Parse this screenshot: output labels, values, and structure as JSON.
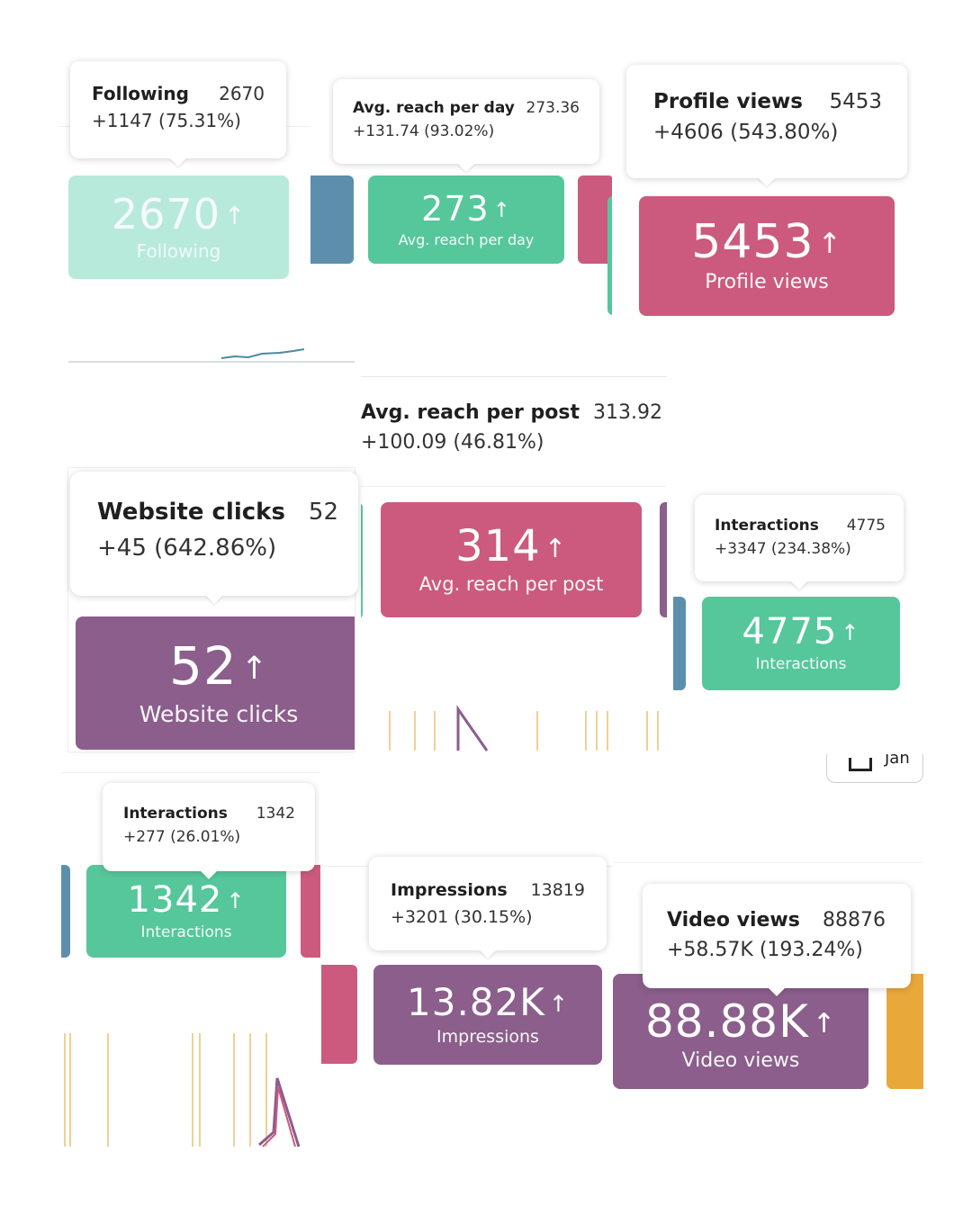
{
  "colors": {
    "teal": "#55c79b",
    "teal_light": "#b8eadb",
    "pink": "#cc5a7e",
    "purple": "#8b5e8c",
    "blue": "#5d8fad",
    "orange": "#e9a83a"
  },
  "metrics": [
    {
      "id": "following",
      "label": "Following",
      "value": "2670",
      "change": "+1147 (75.31%)",
      "card_value": "2670",
      "card_label": "Following",
      "arrow": "↑"
    },
    {
      "id": "avg_reach_day",
      "label": "Avg. reach per day",
      "value": "273.36",
      "change": "+131.74 (93.02%)",
      "card_value": "273",
      "card_label": "Avg. reach per day",
      "arrow": "↑"
    },
    {
      "id": "profile_views",
      "label": "Profile views",
      "value": "5453",
      "change": "+4606 (543.80%)",
      "card_value": "5453",
      "card_label": "Profile views",
      "arrow": "↑"
    },
    {
      "id": "avg_reach_post",
      "label": "Avg. reach per post",
      "value": "313.92",
      "change": "+100.09 (46.81%)",
      "card_value": "314",
      "card_label": "Avg. reach per post",
      "arrow": "↑"
    },
    {
      "id": "website_clicks",
      "label": "Website clicks",
      "value": "52",
      "change": "+45 (642.86%)",
      "card_value": "52",
      "card_label": "Website clicks",
      "arrow": "↑"
    },
    {
      "id": "interactions_1",
      "label": "Interactions",
      "value": "4775",
      "change": "+3347 (234.38%)",
      "card_value": "4775",
      "card_label": "Interactions",
      "arrow": "↑"
    },
    {
      "id": "interactions_2",
      "label": "Interactions",
      "value": "1342",
      "change": "+277 (26.01%)",
      "card_value": "1342",
      "card_label": "Interactions",
      "arrow": "↑"
    },
    {
      "id": "impressions",
      "label": "Impressions",
      "value": "13819",
      "change": "+3201 (30.15%)",
      "card_value": "13.82K",
      "card_label": "Impressions",
      "arrow": "↑"
    },
    {
      "id": "video_views",
      "label": "Video views",
      "value": "88876",
      "change": "+58.57K (193.24%)",
      "card_value": "88.88K",
      "card_label": "Video views",
      "arrow": "↑"
    }
  ],
  "icons": {
    "arrow": "arrow-up-icon",
    "calendar": "calendar-icon"
  },
  "partial_label": "Jan"
}
